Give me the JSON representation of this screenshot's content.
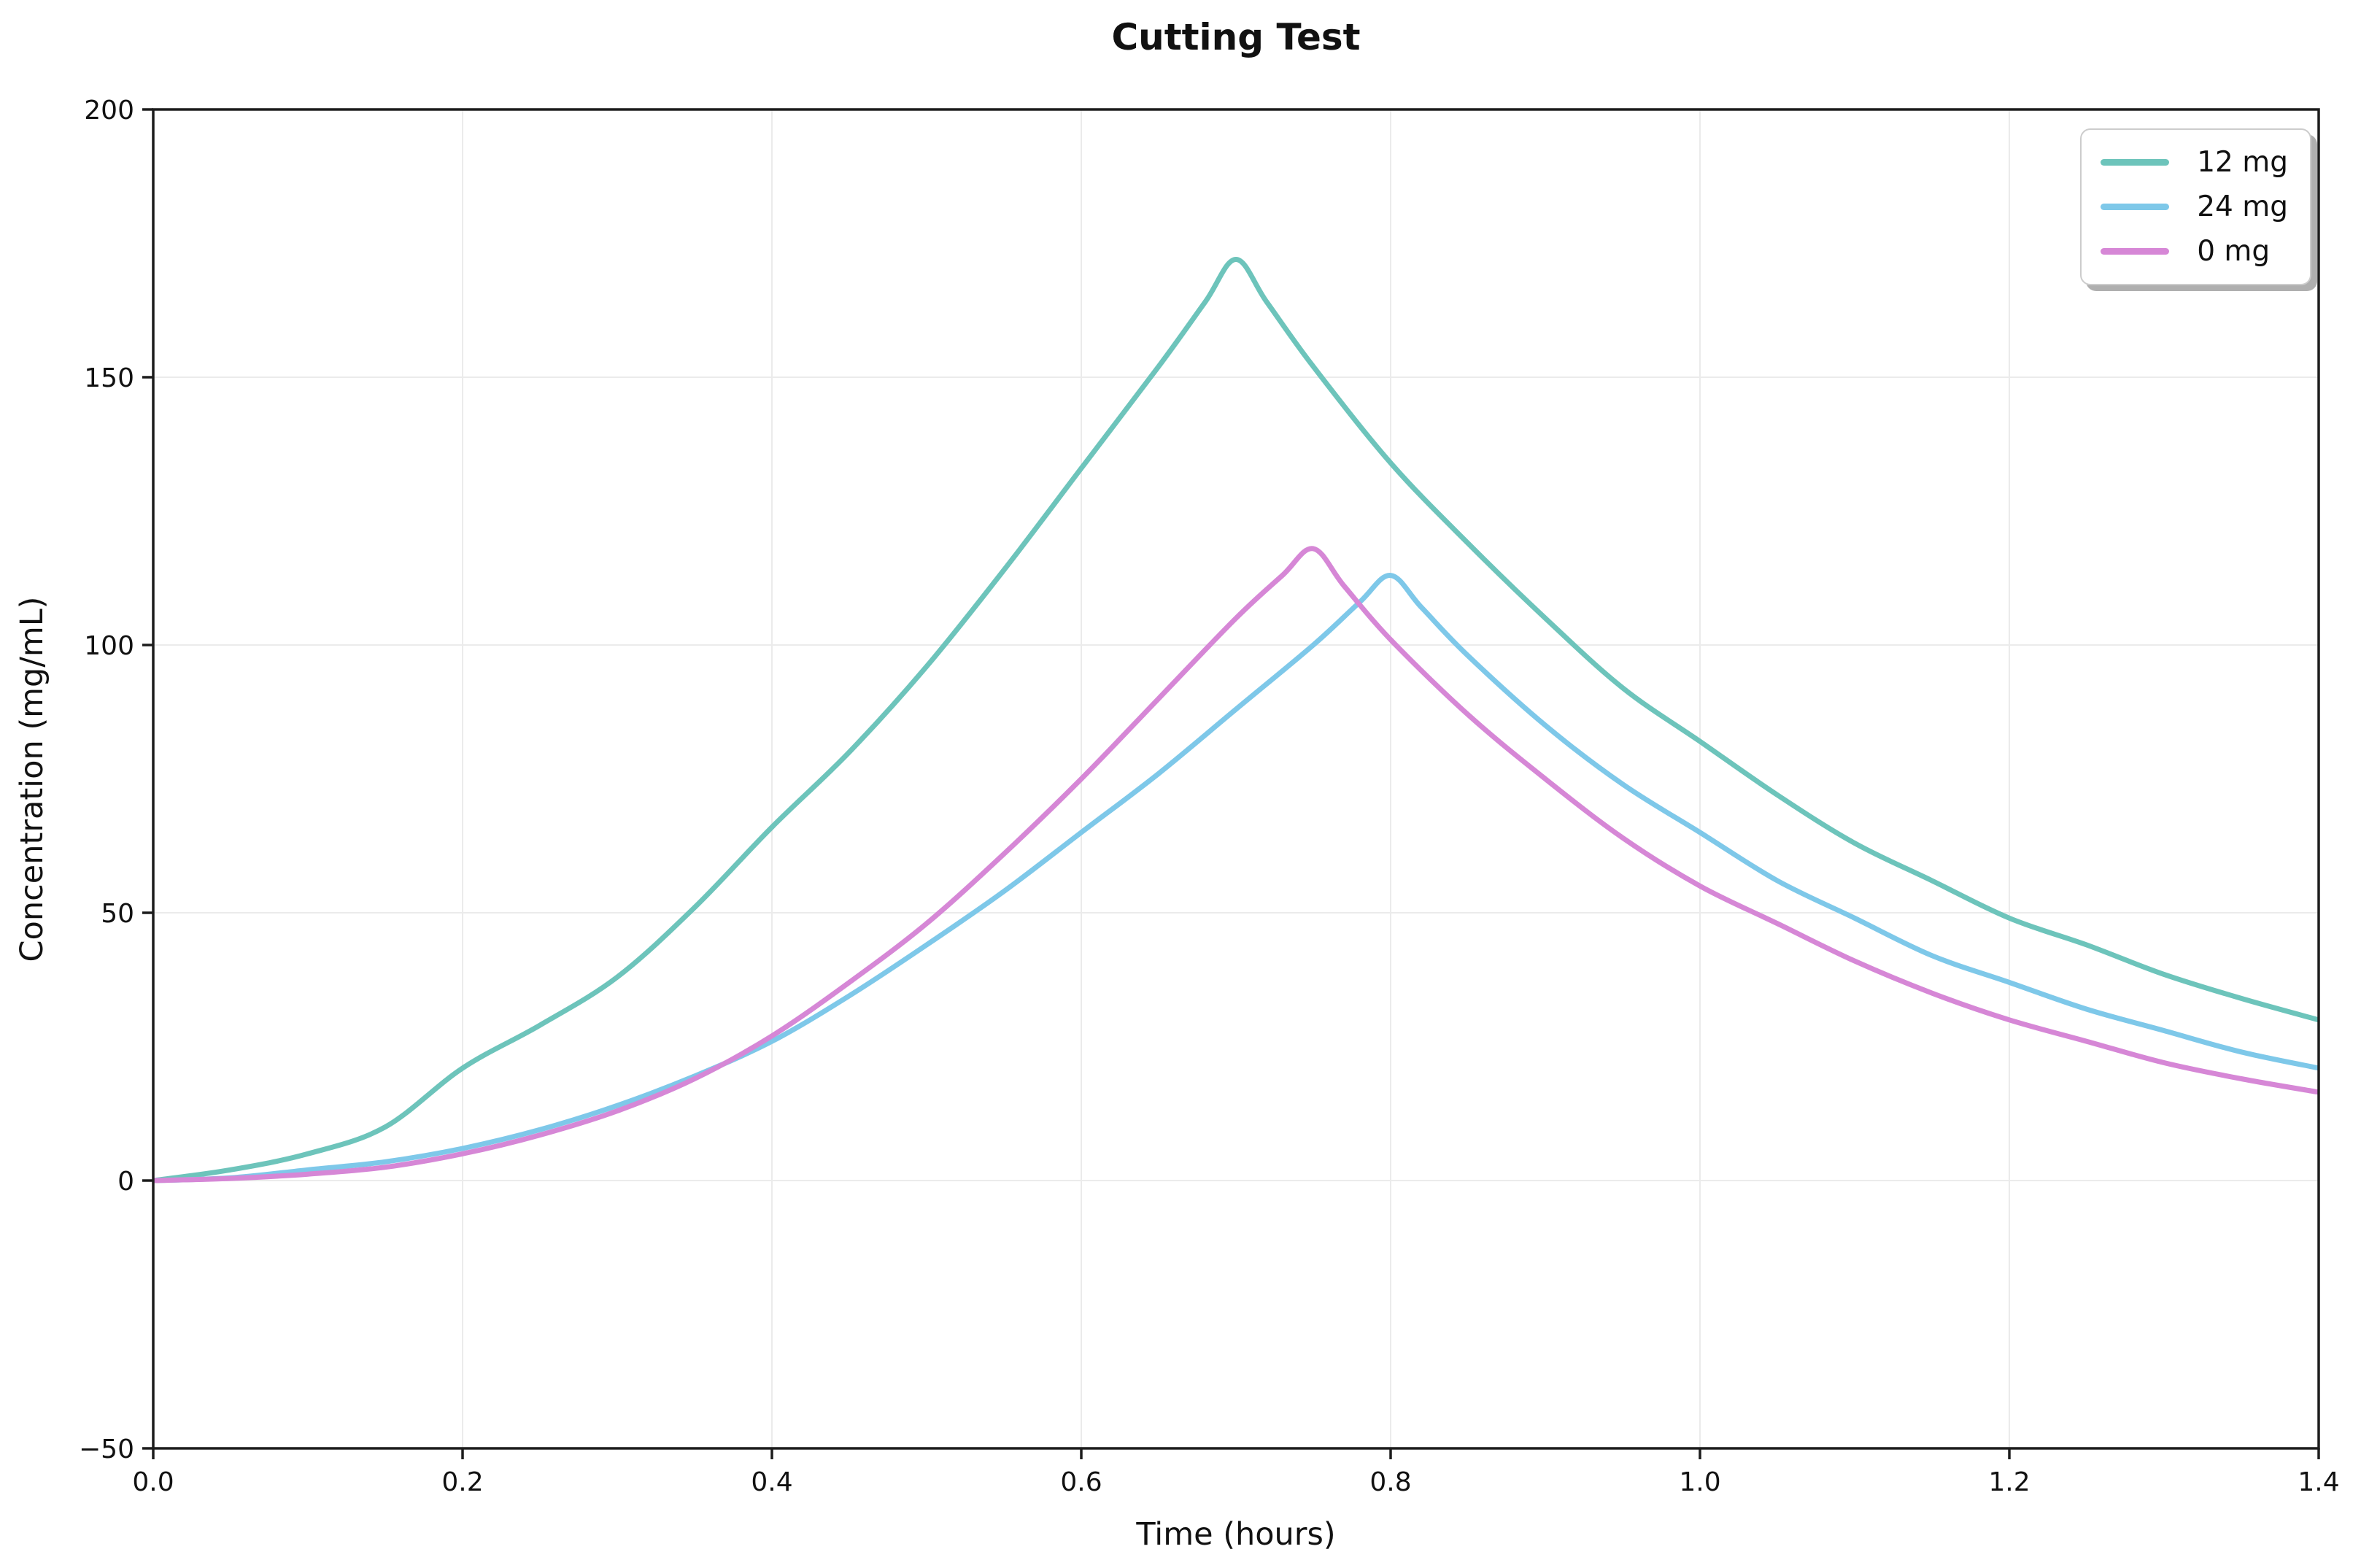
{
  "chart_data": {
    "type": "line",
    "title": "Cutting Test",
    "xlabel": "Time (hours)",
    "ylabel": "Concentration (mg/mL)",
    "xlim": [
      0.0,
      1.4
    ],
    "ylim": [
      -50,
      200
    ],
    "grid": true,
    "legend_position": "upper right",
    "x_tick_values": [
      0.0,
      0.2,
      0.4,
      0.6,
      0.8,
      1.0,
      1.2,
      1.4
    ],
    "x_tick_labels": [
      "0.0",
      "0.2",
      "0.4",
      "0.6",
      "0.8",
      "1.0",
      "1.2",
      "1.4"
    ],
    "y_tick_values": [
      -50,
      0,
      50,
      100,
      150,
      200
    ],
    "y_tick_labels": [
      "−50",
      "0",
      "50",
      "100",
      "150",
      "200"
    ],
    "series": [
      {
        "name": "12 mg",
        "color": "#6DC4BB",
        "peak": {
          "x": 0.7,
          "y": 172
        },
        "x": [
          0,
          0.05,
          0.1,
          0.15,
          0.2,
          0.25,
          0.3,
          0.35,
          0.4,
          0.45,
          0.5,
          0.55,
          0.6,
          0.65,
          0.68,
          0.7,
          0.72,
          0.75,
          0.8,
          0.85,
          0.9,
          0.95,
          1.0,
          1.05,
          1.1,
          1.15,
          1.2,
          1.25,
          1.3,
          1.35,
          1.4
        ],
        "y": [
          0,
          2,
          5,
          10,
          21,
          29,
          38,
          51,
          66,
          80,
          96,
          114,
          133,
          152,
          164,
          172,
          164,
          152,
          134,
          119,
          105,
          92,
          82,
          72,
          63,
          56,
          49,
          44,
          38.5,
          34,
          30
        ]
      },
      {
        "name": "24 mg",
        "color": "#7EC8E9",
        "peak": {
          "x": 0.8,
          "y": 113
        },
        "x": [
          0,
          0.05,
          0.1,
          0.15,
          0.2,
          0.25,
          0.3,
          0.35,
          0.4,
          0.45,
          0.5,
          0.55,
          0.6,
          0.65,
          0.7,
          0.75,
          0.78,
          0.8,
          0.82,
          0.85,
          0.9,
          0.95,
          1.0,
          1.05,
          1.1,
          1.15,
          1.2,
          1.25,
          1.3,
          1.35,
          1.4
        ],
        "y": [
          0,
          0.5,
          2,
          3.5,
          6,
          9.5,
          14,
          19.5,
          26,
          34.5,
          44,
          54,
          65,
          76,
          88,
          100,
          108,
          113,
          107,
          98,
          85,
          74,
          65,
          56,
          49,
          42,
          37,
          32,
          28,
          24,
          21
        ]
      },
      {
        "name": "0 mg",
        "color": "#D687D6",
        "peak": {
          "x": 0.75,
          "y": 118
        },
        "x": [
          0,
          0.05,
          0.1,
          0.15,
          0.2,
          0.25,
          0.3,
          0.35,
          0.4,
          0.45,
          0.5,
          0.55,
          0.6,
          0.65,
          0.7,
          0.73,
          0.75,
          0.77,
          0.8,
          0.85,
          0.9,
          0.95,
          1.0,
          1.05,
          1.1,
          1.15,
          1.2,
          1.25,
          1.3,
          1.35,
          1.4
        ],
        "y": [
          0,
          0.4,
          1.2,
          2.5,
          5,
          8.5,
          13,
          19,
          27,
          37,
          48,
          61,
          75,
          90,
          105,
          113,
          118,
          111,
          101,
          87,
          75,
          64,
          55,
          48,
          41,
          35,
          30,
          26,
          22,
          19,
          16.5
        ]
      }
    ]
  }
}
